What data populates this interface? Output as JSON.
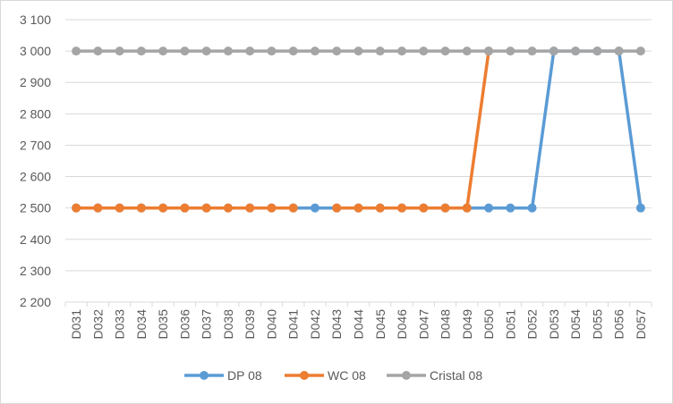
{
  "chart_data": {
    "type": "line",
    "title": "",
    "xlabel": "",
    "ylabel": "",
    "ylim": [
      2200,
      3100
    ],
    "yticks": [
      2200,
      2300,
      2400,
      2500,
      2600,
      2700,
      2800,
      2900,
      3000,
      3100
    ],
    "ytick_labels": [
      "2 200",
      "2 300",
      "2 400",
      "2 500",
      "2 600",
      "2 700",
      "2 800",
      "2 900",
      "3 000",
      "3 100"
    ],
    "grid": true,
    "legend_position": "bottom",
    "categories": [
      "D031",
      "D032",
      "D033",
      "D034",
      "D035",
      "D036",
      "D037",
      "D038",
      "D039",
      "D040",
      "D041",
      "D042",
      "D043",
      "D044",
      "D045",
      "D046",
      "D047",
      "D048",
      "D049",
      "D050",
      "D051",
      "D052",
      "D053",
      "D054",
      "D055",
      "D056",
      "D057"
    ],
    "series": [
      {
        "name": "DP 08",
        "color": "#5b9bd5",
        "values": [
          2500,
          2500,
          2500,
          2500,
          2500,
          2500,
          2500,
          2500,
          2500,
          2500,
          2500,
          2500,
          2500,
          2500,
          2500,
          2500,
          2500,
          2500,
          2500,
          2500,
          2500,
          2500,
          3000,
          3000,
          3000,
          3000,
          2500
        ]
      },
      {
        "name": "WC 08",
        "color": "#ed7d31",
        "values": [
          2500,
          2500,
          2500,
          2500,
          2500,
          2500,
          2500,
          2500,
          2500,
          2500,
          2500,
          null,
          2500,
          2500,
          2500,
          2500,
          2500,
          2500,
          2500,
          3000,
          null,
          null,
          null,
          null,
          null,
          null,
          null
        ]
      },
      {
        "name": "Cristal 08",
        "color": "#a5a5a5",
        "values": [
          3000,
          3000,
          3000,
          3000,
          3000,
          3000,
          3000,
          3000,
          3000,
          3000,
          3000,
          3000,
          3000,
          3000,
          3000,
          3000,
          3000,
          3000,
          3000,
          3000,
          3000,
          3000,
          3000,
          3000,
          3000,
          3000,
          3000
        ]
      }
    ]
  }
}
